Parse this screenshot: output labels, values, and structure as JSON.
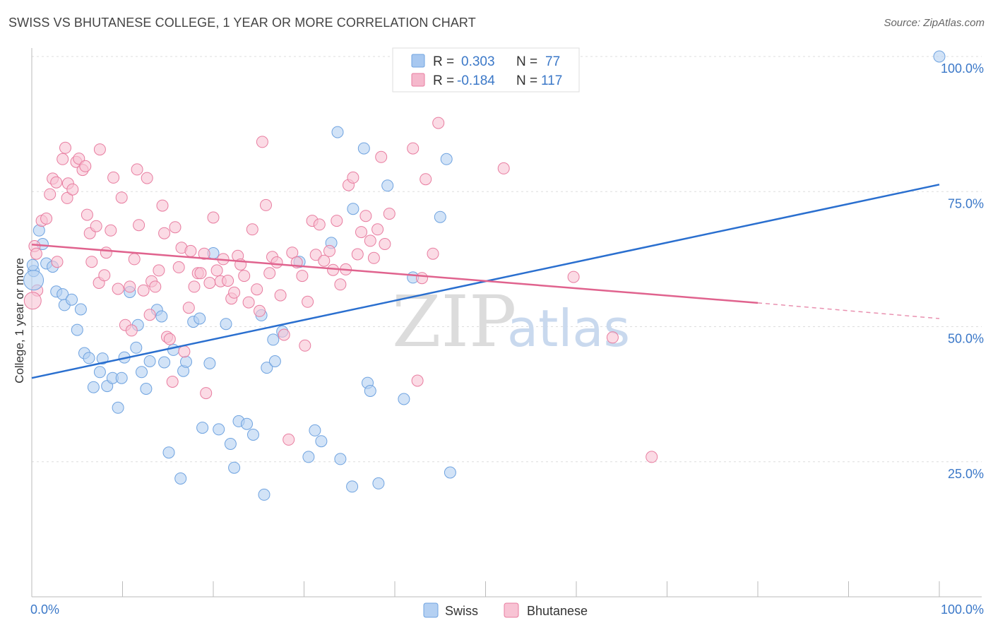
{
  "title": "SWISS VS BHUTANESE COLLEGE, 1 YEAR OR MORE CORRELATION CHART",
  "source": "Source: ZipAtlas.com",
  "watermark": {
    "zip": "ZIP",
    "atlas": "atlas"
  },
  "legend_box": {
    "rows": [
      {
        "r_label": "R =",
        "r_value": "0.303",
        "n_label": "N =",
        "n_value": "77",
        "color": "#a8c8f0"
      },
      {
        "r_label": "R =",
        "r_value": "-0.184",
        "n_label": "N =",
        "n_value": "117",
        "color": "#f5b8cc"
      }
    ]
  },
  "chart_data": {
    "type": "scatter",
    "title": "SWISS VS BHUTANESE COLLEGE, 1 YEAR OR MORE CORRELATION CHART",
    "xlabel": "",
    "ylabel": "College, 1 year or more",
    "xlim": [
      0,
      100
    ],
    "ylim": [
      0,
      100
    ],
    "x_tick_labels": [
      "0.0%",
      "100.0%"
    ],
    "y_tick_labels": [
      "100.0%",
      "75.0%",
      "50.0%",
      "25.0%"
    ],
    "y_tick_values": [
      100,
      75,
      50,
      25
    ],
    "grid": true,
    "legend": [
      "Swiss",
      "Bhutanese"
    ],
    "series": [
      {
        "name": "Swiss",
        "color": "#6fa3e0",
        "fill": "#b4d0f2",
        "trend": {
          "x": [
            0,
            100
          ],
          "y": [
            40.5,
            76.3
          ]
        },
        "points": [
          [
            0.2,
            60.3
          ],
          [
            0.8,
            67.8
          ],
          [
            1.2,
            65.3
          ],
          [
            1.6,
            61.7
          ],
          [
            2.3,
            61.1
          ],
          [
            2.7,
            56.5
          ],
          [
            3.4,
            56.0
          ],
          [
            3.6,
            54.0
          ],
          [
            4.4,
            55.0
          ],
          [
            5.0,
            49.4
          ],
          [
            5.4,
            53.2
          ],
          [
            5.8,
            45.1
          ],
          [
            6.3,
            44.2
          ],
          [
            6.8,
            38.8
          ],
          [
            7.8,
            44.1
          ],
          [
            7.5,
            41.6
          ],
          [
            8.3,
            39.0
          ],
          [
            8.9,
            40.5
          ],
          [
            9.5,
            35.0
          ],
          [
            9.9,
            40.5
          ],
          [
            10.2,
            44.3
          ],
          [
            10.8,
            56.4
          ],
          [
            11.5,
            46.1
          ],
          [
            11.7,
            50.3
          ],
          [
            12.1,
            41.6
          ],
          [
            12.6,
            38.5
          ],
          [
            13.0,
            43.6
          ],
          [
            13.8,
            53.1
          ],
          [
            14.3,
            51.9
          ],
          [
            14.6,
            43.4
          ],
          [
            15.1,
            26.7
          ],
          [
            15.6,
            45.7
          ],
          [
            16.4,
            21.9
          ],
          [
            16.7,
            41.8
          ],
          [
            17.0,
            43.5
          ],
          [
            17.8,
            50.9
          ],
          [
            18.8,
            31.3
          ],
          [
            18.5,
            51.5
          ],
          [
            19.6,
            43.2
          ],
          [
            20.0,
            63.6
          ],
          [
            20.6,
            31.0
          ],
          [
            21.4,
            50.5
          ],
          [
            21.9,
            28.3
          ],
          [
            22.3,
            23.9
          ],
          [
            22.8,
            32.5
          ],
          [
            23.7,
            32.0
          ],
          [
            24.4,
            30.0
          ],
          [
            25.3,
            52.1
          ],
          [
            25.6,
            18.9
          ],
          [
            25.9,
            42.4
          ],
          [
            26.8,
            43.6
          ],
          [
            26.6,
            47.6
          ],
          [
            27.6,
            49.1
          ],
          [
            29.5,
            62.0
          ],
          [
            30.5,
            25.9
          ],
          [
            31.2,
            30.8
          ],
          [
            31.9,
            28.8
          ],
          [
            33.0,
            65.5
          ],
          [
            33.7,
            86.0
          ],
          [
            34.0,
            25.5
          ],
          [
            35.4,
            71.8
          ],
          [
            35.3,
            20.4
          ],
          [
            36.6,
            83.0
          ],
          [
            37.0,
            39.6
          ],
          [
            37.3,
            38.1
          ],
          [
            38.2,
            21.0
          ],
          [
            39.2,
            76.1
          ],
          [
            41.0,
            36.6
          ],
          [
            42.0,
            59.1
          ],
          [
            45.0,
            70.3
          ],
          [
            45.7,
            81.0
          ],
          [
            46.1,
            23.0
          ],
          [
            100,
            100
          ],
          [
            0.1,
            61.4
          ]
        ]
      },
      {
        "name": "Bhutanese",
        "color": "#e87da0",
        "fill": "#f8c3d4",
        "trend": {
          "x": [
            0,
            80
          ],
          "y": [
            65.2,
            54.4
          ]
        },
        "trend_dashed": {
          "x": [
            80,
            100
          ],
          "y": [
            54.4,
            51.5
          ]
        },
        "points": [
          [
            0.3,
            64.9
          ],
          [
            0.5,
            63.5
          ],
          [
            0.6,
            56.7
          ],
          [
            1.1,
            69.6
          ],
          [
            1.6,
            70.0
          ],
          [
            2.0,
            74.5
          ],
          [
            2.3,
            77.4
          ],
          [
            2.7,
            76.7
          ],
          [
            2.8,
            62.0
          ],
          [
            3.4,
            81.0
          ],
          [
            3.7,
            83.1
          ],
          [
            3.9,
            73.8
          ],
          [
            4.0,
            76.5
          ],
          [
            4.5,
            75.4
          ],
          [
            4.9,
            80.5
          ],
          [
            5.2,
            81.1
          ],
          [
            5.6,
            79.0
          ],
          [
            5.9,
            79.7
          ],
          [
            6.1,
            70.7
          ],
          [
            6.4,
            67.3
          ],
          [
            6.6,
            62.0
          ],
          [
            7.1,
            68.6
          ],
          [
            7.4,
            58.1
          ],
          [
            7.5,
            82.8
          ],
          [
            8.0,
            59.5
          ],
          [
            8.2,
            63.7
          ],
          [
            8.7,
            67.8
          ],
          [
            9.0,
            77.6
          ],
          [
            9.5,
            57.0
          ],
          [
            9.9,
            73.9
          ],
          [
            10.3,
            50.3
          ],
          [
            10.8,
            57.4
          ],
          [
            11.0,
            49.3
          ],
          [
            11.3,
            62.5
          ],
          [
            11.6,
            79.1
          ],
          [
            11.8,
            68.8
          ],
          [
            12.3,
            56.7
          ],
          [
            12.7,
            77.5
          ],
          [
            13.0,
            52.2
          ],
          [
            13.2,
            58.4
          ],
          [
            13.6,
            57.4
          ],
          [
            14.0,
            60.4
          ],
          [
            14.4,
            72.4
          ],
          [
            14.6,
            67.3
          ],
          [
            14.9,
            48.1
          ],
          [
            15.2,
            47.7
          ],
          [
            15.5,
            39.8
          ],
          [
            15.8,
            68.4
          ],
          [
            16.2,
            61.0
          ],
          [
            16.5,
            64.6
          ],
          [
            16.8,
            45.4
          ],
          [
            17.3,
            53.5
          ],
          [
            17.5,
            64.0
          ],
          [
            17.9,
            57.4
          ],
          [
            18.3,
            59.9
          ],
          [
            18.6,
            59.9
          ],
          [
            19.0,
            63.5
          ],
          [
            19.2,
            37.7
          ],
          [
            19.6,
            58.1
          ],
          [
            20.0,
            70.2
          ],
          [
            20.4,
            60.4
          ],
          [
            20.8,
            58.4
          ],
          [
            21.1,
            62.5
          ],
          [
            21.6,
            58.5
          ],
          [
            22.0,
            55.2
          ],
          [
            22.3,
            56.3
          ],
          [
            22.7,
            63.1
          ],
          [
            23.0,
            61.5
          ],
          [
            23.4,
            59.4
          ],
          [
            23.9,
            54.5
          ],
          [
            24.3,
            68.0
          ],
          [
            24.8,
            56.9
          ],
          [
            25.1,
            52.9
          ],
          [
            25.4,
            84.2
          ],
          [
            25.8,
            72.5
          ],
          [
            26.2,
            59.9
          ],
          [
            26.5,
            62.9
          ],
          [
            27.0,
            61.9
          ],
          [
            27.4,
            55.8
          ],
          [
            27.8,
            48.5
          ],
          [
            28.3,
            29.1
          ],
          [
            28.7,
            63.7
          ],
          [
            29.2,
            61.9
          ],
          [
            29.8,
            59.4
          ],
          [
            30.1,
            46.5
          ],
          [
            30.4,
            54.6
          ],
          [
            30.9,
            69.6
          ],
          [
            31.3,
            63.3
          ],
          [
            31.7,
            68.9
          ],
          [
            32.2,
            62.2
          ],
          [
            32.8,
            64.0
          ],
          [
            33.2,
            60.5
          ],
          [
            33.6,
            69.6
          ],
          [
            34.0,
            57.8
          ],
          [
            34.6,
            60.6
          ],
          [
            34.9,
            76.2
          ],
          [
            35.4,
            77.6
          ],
          [
            35.9,
            63.4
          ],
          [
            36.3,
            67.5
          ],
          [
            36.8,
            70.5
          ],
          [
            37.3,
            65.9
          ],
          [
            37.7,
            62.7
          ],
          [
            38.1,
            68.0
          ],
          [
            38.5,
            81.4
          ],
          [
            38.9,
            65.3
          ],
          [
            39.4,
            70.9
          ],
          [
            42.0,
            83.0
          ],
          [
            42.5,
            40.0
          ],
          [
            43.0,
            59.0
          ],
          [
            43.4,
            77.3
          ],
          [
            44.2,
            63.5
          ],
          [
            44.8,
            87.7
          ],
          [
            52.0,
            79.3
          ],
          [
            59.7,
            59.2
          ],
          [
            64.0,
            48.0
          ],
          [
            68.3,
            25.9
          ]
        ]
      }
    ]
  }
}
